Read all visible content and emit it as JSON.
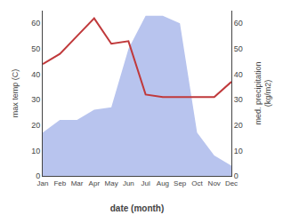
{
  "chart_data": {
    "type": "line",
    "categories": [
      "Jan",
      "Feb",
      "Mar",
      "Apr",
      "May",
      "Jun",
      "Jul",
      "Aug",
      "Sep",
      "Oct",
      "Nov",
      "Dec"
    ],
    "series": [
      {
        "type": "line",
        "color": "#c0393b",
        "values": [
          44,
          48,
          55,
          62,
          52,
          53,
          32,
          31,
          31,
          31,
          31,
          37
        ]
      },
      {
        "type": "area",
        "color": "#b8c4ee",
        "axis": "y2",
        "values": [
          17,
          22,
          22,
          26,
          27,
          50,
          63,
          63,
          60,
          17,
          8,
          4
        ]
      }
    ],
    "xlabel": "date (month)",
    "ylabel": "max temp (C)",
    "y2label": "med. precipitation\n(kg/m2)",
    "ylim": [
      0,
      65
    ],
    "yticks": [
      0,
      10,
      20,
      30,
      40,
      50,
      60
    ],
    "y2lim": [
      0,
      65
    ],
    "y2ticks": [
      0,
      10,
      20,
      30,
      40,
      50,
      60
    ],
    "grid": false
  }
}
